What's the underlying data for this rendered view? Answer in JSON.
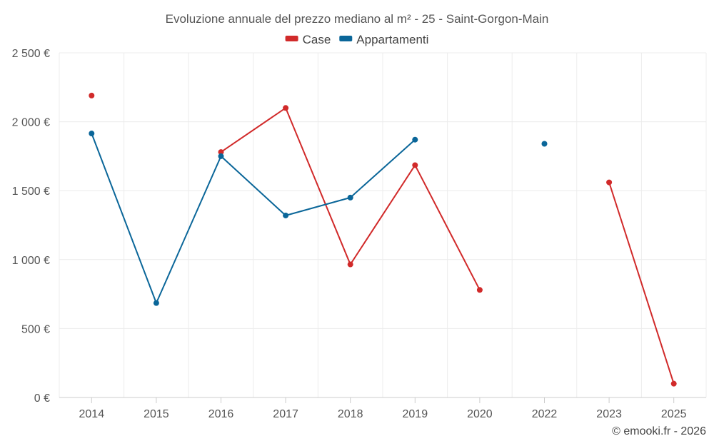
{
  "chart_data": {
    "type": "line",
    "title": "Evoluzione annuale del prezzo mediano al m² - 25 - Saint-Gorgon-Main",
    "categories": [
      "2014",
      "2015",
      "2016",
      "2017",
      "2018",
      "2019",
      "2020",
      "2022",
      "2023",
      "2025"
    ],
    "series": [
      {
        "name": "Case",
        "color": "#d12a2a",
        "values": [
          2190,
          null,
          1780,
          2100,
          965,
          1685,
          780,
          null,
          1560,
          100
        ]
      },
      {
        "name": "Appartamenti",
        "color": "#0a6699",
        "values": [
          1915,
          685,
          1750,
          1320,
          1450,
          1870,
          null,
          1840,
          null,
          null
        ]
      }
    ],
    "ylim": [
      0,
      2500
    ],
    "yticks": [
      0,
      500,
      1000,
      1500,
      2000,
      2500
    ],
    "ytick_labels": [
      "0 €",
      "500 €",
      "1 000 €",
      "1 500 €",
      "2 000 €",
      "2 500 €"
    ],
    "xlabel": "",
    "ylabel": "",
    "grid": true,
    "legend_position": "top-center"
  },
  "credit": "© emooki.fr - 2026"
}
